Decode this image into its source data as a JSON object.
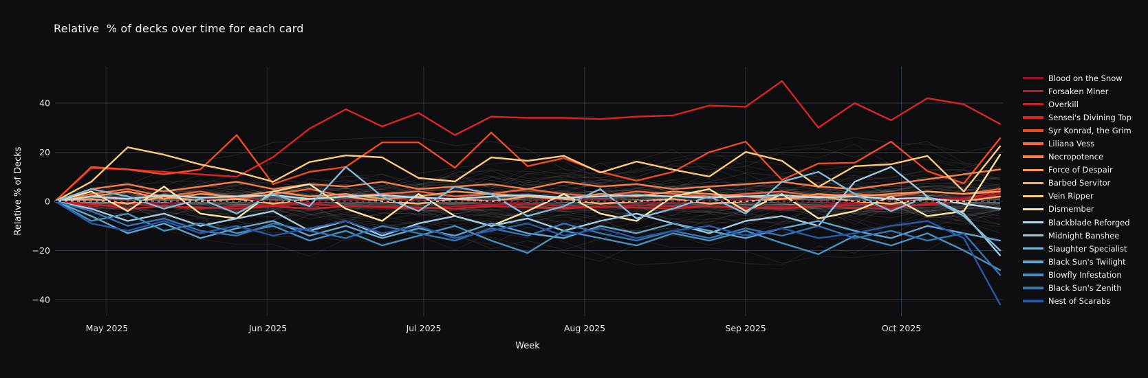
{
  "title": "Relative  % of decks over time for each card",
  "theme": {
    "background": "#0e0e10",
    "grid_color": "rgba(110,135,170,0.33)",
    "text_color": "#f2f2f2",
    "tick_color": "#e8e8e8"
  },
  "chart_data": {
    "type": "line",
    "title": "Relative  % of decks over time for each card",
    "x_label": "Week",
    "y_label": "Relative % of Decks",
    "x_ticks": [
      {
        "label": "May 2025",
        "week": 1.4286
      },
      {
        "label": "Jun 2025",
        "week": 5.8571
      },
      {
        "label": "Jul 2025",
        "week": 10.1429
      },
      {
        "label": "Aug 2025",
        "week": 14.5714
      },
      {
        "label": "Sep 2025",
        "week": 19.0
      },
      {
        "label": "Oct 2025",
        "week": 23.2857
      }
    ],
    "y_ticks": [
      {
        "label": "40",
        "value": 40
      },
      {
        "label": "20",
        "value": 20
      },
      {
        "label": "0",
        "value": 0
      },
      {
        "label": "−20",
        "value": -20
      },
      {
        "label": "−40",
        "value": -40
      }
    ],
    "ylim": [
      -43.4,
      55.4
    ],
    "weeks": 27,
    "grid": true,
    "legend_position": "right",
    "zero_line": {
      "style": "dashed",
      "color": "#000000",
      "dash": "5 4",
      "width": 2
    },
    "background_series": {
      "count": 110,
      "color": "#d6d6d6",
      "opacity": 0.075,
      "seed": 1234,
      "meaning": "unhighlighted cards"
    },
    "series": [
      {
        "name": "Blood on the Snow",
        "color": "#9c1030",
        "values": [
          0,
          1,
          0,
          -1,
          0.5,
          1,
          0,
          -0.5,
          0.5,
          0,
          1,
          0.5,
          -0.5,
          0,
          1,
          0.5,
          0,
          -0.5,
          0,
          1,
          0.5,
          0,
          -0.5,
          0.5,
          1,
          1.5,
          2
        ]
      },
      {
        "name": "Forsaken Miner",
        "color": "#b51a28",
        "values": [
          0,
          -2,
          -1,
          -2,
          -3,
          -2,
          -1.5,
          -1,
          -2,
          -2.5,
          -3,
          -2,
          -1.5,
          -1,
          -2,
          -2.5,
          -1.5,
          -2,
          -2,
          -3,
          -2,
          -2,
          -1,
          -2,
          -1.5,
          0,
          3
        ]
      },
      {
        "name": "Overkill",
        "color": "#c92128",
        "values": [
          0,
          -1,
          -3,
          -2,
          -2.5,
          -3,
          -2,
          -3,
          -2,
          -2,
          -2.5,
          -3,
          -2,
          -2.5,
          -3,
          -2,
          -2.5,
          -3,
          -2,
          -2.5,
          -3,
          -2,
          -2.5,
          -3,
          -1,
          1,
          4
        ]
      },
      {
        "name": "Sensei's Divining Top",
        "color": "#da2521",
        "values": [
          0,
          13.5,
          13,
          12,
          11,
          10,
          18,
          29.6,
          37.5,
          30.5,
          36,
          27,
          34.5,
          34,
          34,
          33.5,
          34.5,
          35,
          39,
          38.5,
          49,
          30,
          40,
          33,
          42,
          39.5,
          31.5
        ]
      },
      {
        "name": "Syr Konrad, the Grim",
        "color": "#ee4b25",
        "values": [
          0,
          14,
          13,
          11,
          13,
          27,
          7,
          12,
          14,
          24,
          24,
          13.7,
          28,
          14.3,
          17.6,
          12,
          8.4,
          12,
          20,
          24.3,
          8.7,
          15.4,
          15.7,
          24.3,
          12.3,
          7.3,
          25.7
        ]
      },
      {
        "name": "Liliana Vess",
        "color": "#f4683e",
        "values": [
          0,
          3,
          5,
          2,
          4,
          1,
          3,
          5,
          2,
          3,
          4,
          2,
          3,
          5,
          3,
          2,
          4,
          3,
          2,
          3,
          4,
          2,
          3,
          2,
          4,
          3,
          5
        ]
      },
      {
        "name": "Necropotence",
        "color": "#f67f4b",
        "values": [
          0,
          5,
          7,
          4,
          6,
          8,
          5,
          7,
          6,
          8,
          5,
          6,
          7,
          5,
          8,
          6,
          7,
          5,
          6,
          7,
          8,
          6,
          5,
          7,
          9,
          11,
          13
        ]
      },
      {
        "name": "Force of Despair",
        "color": "#f99857",
        "values": [
          0,
          2,
          4,
          1,
          3,
          2,
          4,
          2,
          3,
          1,
          2,
          4,
          3,
          2,
          1,
          3,
          2,
          4,
          3,
          2,
          1,
          3,
          2,
          3,
          4,
          3,
          4
        ]
      },
      {
        "name": "Barbed Servitor",
        "color": "#fdae64",
        "values": [
          0,
          1,
          -1,
          2,
          0,
          1,
          -1,
          1,
          2,
          0,
          -1,
          1,
          0,
          2,
          1,
          -1,
          0,
          1,
          -1,
          0,
          1,
          2,
          0,
          -1,
          1,
          0,
          2
        ]
      },
      {
        "name": "Vein Ripper",
        "color": "#fdc97d",
        "values": [
          0,
          8,
          22,
          19,
          15,
          12,
          8,
          16,
          18.7,
          17.9,
          9.5,
          8.1,
          17.9,
          16.5,
          18.5,
          11.7,
          16.2,
          12.9,
          10.1,
          20.1,
          16.5,
          5.9,
          14.3,
          15.1,
          18.5,
          4,
          22.4
        ]
      },
      {
        "name": "Dismember",
        "color": "#fee49e",
        "values": [
          0,
          4,
          -4,
          6,
          -5,
          -7,
          4,
          7,
          -3,
          -8,
          3,
          -6,
          -10,
          -4,
          3,
          -5,
          -8,
          2,
          5,
          -4,
          3,
          -7,
          -4,
          2,
          -6,
          -4,
          19
        ]
      },
      {
        "name": "Blackblade Reforged",
        "color": "#bedcec",
        "values": [
          0,
          2,
          1,
          2.5,
          1.5,
          2,
          2.5,
          1,
          2,
          2.5,
          1.5,
          1,
          2,
          2.5,
          1.5,
          2,
          2.5,
          2,
          1.5,
          2,
          2.5,
          1.5,
          2,
          1,
          1.5,
          -1,
          -3
        ]
      },
      {
        "name": "Midnight Banshee",
        "color": "#a0cbe2",
        "values": [
          0,
          -3,
          -8,
          -5,
          -10,
          -7,
          -4,
          -12,
          -8,
          -14,
          -9,
          -6,
          -10,
          -7,
          -12,
          -8,
          -5,
          -9,
          -13,
          -8,
          -6,
          -10,
          8,
          14,
          2,
          -5,
          -22
        ]
      },
      {
        "name": "Slaughter Specialist",
        "color": "#82bad9",
        "values": [
          0,
          5,
          2,
          -3,
          1,
          -5,
          3,
          -2,
          14,
          2,
          -4,
          6,
          3,
          -6,
          -2,
          5,
          -7,
          -3,
          2,
          -5,
          8,
          12,
          3,
          -4,
          2,
          -6,
          -20
        ]
      },
      {
        "name": "Black Sun's Twilight",
        "color": "#63a5cf",
        "values": [
          0,
          -6,
          -13,
          -9,
          -15,
          -11,
          -8,
          -14,
          -10,
          -15,
          -11,
          -14,
          -9,
          -13,
          -15,
          -10,
          -13,
          -9,
          -12,
          -15,
          -11,
          -8,
          -12,
          -15,
          -10,
          -13,
          -16
        ]
      },
      {
        "name": "Blowfly Infestation",
        "color": "#4890c1",
        "values": [
          0,
          -8,
          -5,
          -12,
          -9,
          -13,
          -10,
          -16,
          -12,
          -18,
          -14,
          -10,
          -16,
          -21,
          -12,
          -15,
          -18,
          -13,
          -16,
          -12,
          -17,
          -21.5,
          -14,
          -18,
          -13,
          -20,
          -28
        ]
      },
      {
        "name": "Black Sun's Zenith",
        "color": "#3575b5",
        "values": [
          0,
          -4,
          -10,
          -7,
          -12,
          -14,
          -9,
          -12,
          -15,
          -10,
          -13,
          -16,
          -11,
          -14,
          -9,
          -13,
          -16,
          -12,
          -15,
          -11,
          -14,
          -10,
          -15,
          -12,
          -16,
          -13,
          -30
        ]
      },
      {
        "name": "Nest of Scarabs",
        "color": "#2858a5",
        "values": [
          0,
          -9,
          -12,
          -8,
          -13,
          -10,
          -14,
          -11,
          -8,
          -13,
          -10,
          -15,
          -12,
          -9,
          -14,
          -11,
          -15,
          -12,
          -10,
          -14,
          -11,
          -15,
          -13,
          -10,
          -8,
          -15,
          -42
        ]
      }
    ]
  }
}
